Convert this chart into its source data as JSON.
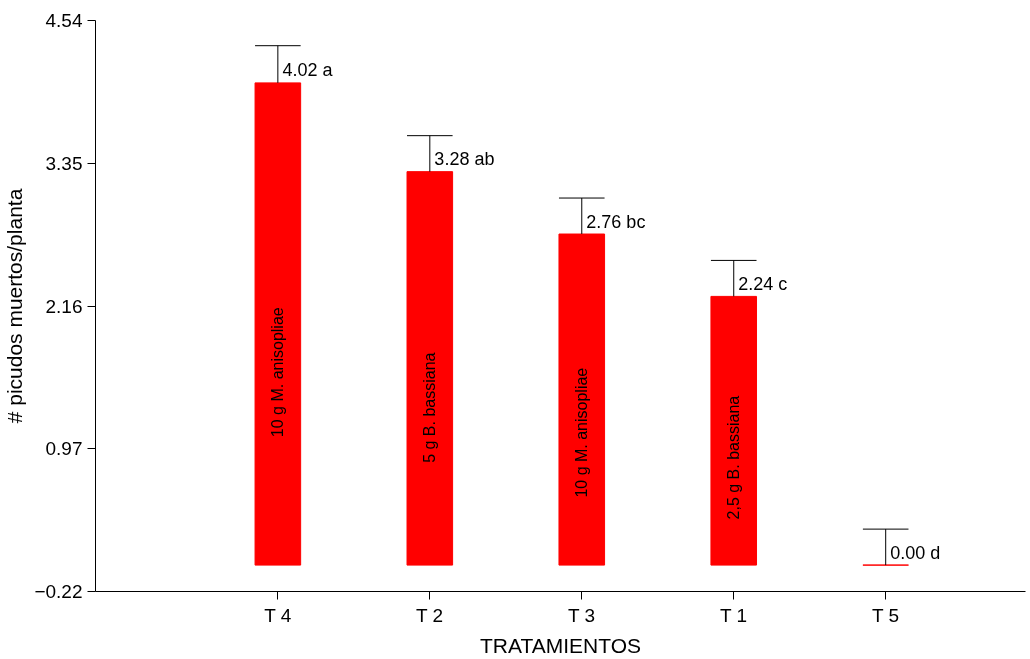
{
  "chart_data": {
    "type": "bar",
    "xlabel": "TRATAMIENTOS",
    "ylabel": "# picudos muertos/planta",
    "categories": [
      "T 4",
      "T 2",
      "T 3",
      "T 1",
      "T 5"
    ],
    "values": [
      4.02,
      3.28,
      2.76,
      2.24,
      0.0
    ],
    "color": "#ff0000",
    "errors": [
      [
        4.02,
        4.33
      ],
      [
        3.28,
        3.58
      ],
      [
        2.76,
        3.06
      ],
      [
        2.24,
        2.54
      ],
      [
        0.0,
        0.3
      ]
    ],
    "value_labels": [
      "4.02 a",
      "3.28 ab",
      "2.76 bc",
      "2.24 c",
      "0.00 d"
    ],
    "annotations": [
      "10 g M. anisopliae",
      "5 g B. bassiana",
      "10 g M. anisopliae",
      "2,5 g B. bassiana"
    ],
    "ylim": [
      -0.22,
      4.54
    ],
    "yticks": [
      4.54,
      3.35,
      2.16,
      0.97,
      -0.22
    ],
    "grid": false
  }
}
